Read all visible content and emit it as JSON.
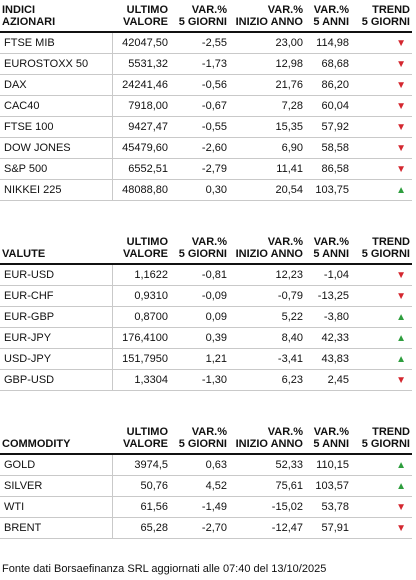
{
  "headers": {
    "ultimo": [
      "ULTIMO",
      "VALORE"
    ],
    "var5": [
      "VAR.%",
      "5 GIORNI"
    ],
    "varInizio": [
      "VAR.%",
      "INIZIO ANNO"
    ],
    "var5anni": [
      "VAR.%",
      "5 ANNI"
    ],
    "trend": [
      "TREND",
      "5 GIORNI"
    ]
  },
  "sections": [
    {
      "title": [
        "INDICI",
        "AZIONARI"
      ],
      "rows": [
        {
          "name": "FTSE MIB",
          "ultimo": "42047,50",
          "var5": "-2,55",
          "varInizio": "23,00",
          "var5anni": "114,98",
          "trend": "down"
        },
        {
          "name": "EUROSTOXX 50",
          "ultimo": "5531,32",
          "var5": "-1,73",
          "varInizio": "12,98",
          "var5anni": "68,68",
          "trend": "down"
        },
        {
          "name": "DAX",
          "ultimo": "24241,46",
          "var5": "-0,56",
          "varInizio": "21,76",
          "var5anni": "86,20",
          "trend": "down"
        },
        {
          "name": "CAC40",
          "ultimo": "7918,00",
          "var5": "-0,67",
          "varInizio": "7,28",
          "var5anni": "60,04",
          "trend": "down"
        },
        {
          "name": "FTSE 100",
          "ultimo": "9427,47",
          "var5": "-0,55",
          "varInizio": "15,35",
          "var5anni": "57,92",
          "trend": "down"
        },
        {
          "name": "DOW JONES",
          "ultimo": "45479,60",
          "var5": "-2,60",
          "varInizio": "6,90",
          "var5anni": "58,58",
          "trend": "down"
        },
        {
          "name": "S&P 500",
          "ultimo": "6552,51",
          "var5": "-2,79",
          "varInizio": "11,41",
          "var5anni": "86,58",
          "trend": "down"
        },
        {
          "name": "NIKKEI 225",
          "ultimo": "48088,80",
          "var5": "0,30",
          "varInizio": "20,54",
          "var5anni": "103,75",
          "trend": "up"
        }
      ]
    },
    {
      "title": [
        "VALUTE",
        ""
      ],
      "rows": [
        {
          "name": "EUR-USD",
          "ultimo": "1,1622",
          "var5": "-0,81",
          "varInizio": "12,23",
          "var5anni": "-1,04",
          "trend": "down"
        },
        {
          "name": "EUR-CHF",
          "ultimo": "0,9310",
          "var5": "-0,09",
          "varInizio": "-0,79",
          "var5anni": "-13,25",
          "trend": "down"
        },
        {
          "name": "EUR-GBP",
          "ultimo": "0,8700",
          "var5": "0,09",
          "varInizio": "5,22",
          "var5anni": "-3,80",
          "trend": "up"
        },
        {
          "name": "EUR-JPY",
          "ultimo": "176,4100",
          "var5": "0,39",
          "varInizio": "8,40",
          "var5anni": "42,33",
          "trend": "up"
        },
        {
          "name": "USD-JPY",
          "ultimo": "151,7950",
          "var5": "1,21",
          "varInizio": "-3,41",
          "var5anni": "43,83",
          "trend": "up"
        },
        {
          "name": "GBP-USD",
          "ultimo": "1,3304",
          "var5": "-1,30",
          "varInizio": "6,23",
          "var5anni": "2,45",
          "trend": "down"
        }
      ]
    },
    {
      "title": [
        "COMMODITY",
        ""
      ],
      "rows": [
        {
          "name": "GOLD",
          "ultimo": "3974,5",
          "var5": "0,63",
          "varInizio": "52,33",
          "var5anni": "110,15",
          "trend": "up"
        },
        {
          "name": "SILVER",
          "ultimo": "50,76",
          "var5": "4,52",
          "varInizio": "75,61",
          "var5anni": "103,57",
          "trend": "up"
        },
        {
          "name": "WTI",
          "ultimo": "61,56",
          "var5": "-1,49",
          "varInizio": "-15,02",
          "var5anni": "53,78",
          "trend": "down"
        },
        {
          "name": "BRENT",
          "ultimo": "65,28",
          "var5": "-2,70",
          "varInizio": "-12,47",
          "var5anni": "57,91",
          "trend": "down"
        }
      ]
    }
  ],
  "footer": "Fonte dati Borsaefinanza SRL aggiornati alle 07:40 del 13/10/2025",
  "colors": {
    "down": "#d4272f",
    "up": "#2e9e3e"
  },
  "icons": {
    "down": "triangle-down-icon",
    "up": "triangle-up-icon"
  }
}
